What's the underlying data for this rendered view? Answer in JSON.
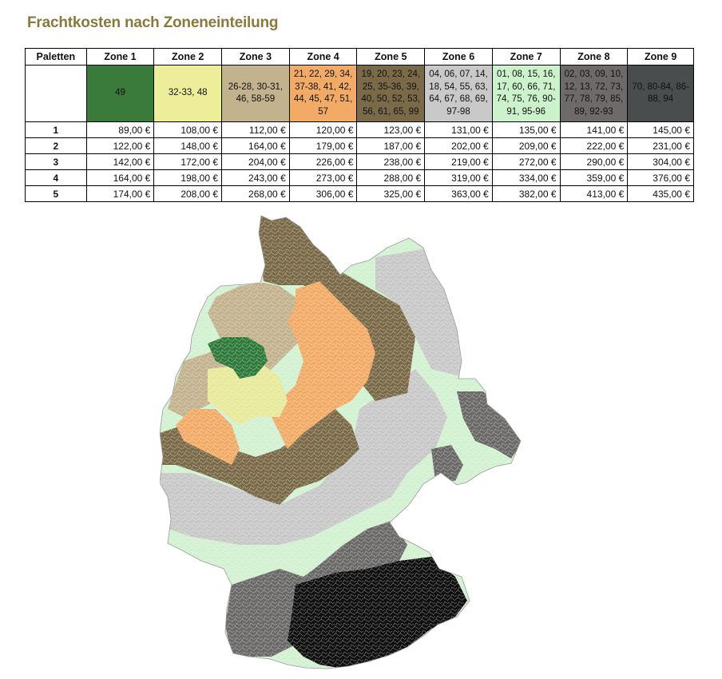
{
  "title": "Frachtkosten nach Zoneneinteilung",
  "table": {
    "header": [
      "Paletten",
      "Zone 1",
      "Zone 2",
      "Zone 3",
      "Zone 4",
      "Zone 5",
      "Zone 6",
      "Zone 7",
      "Zone 8",
      "Zone 9"
    ],
    "zones": [
      {
        "codes": "49",
        "color": "#3a7a3a",
        "text_color": "#111111"
      },
      {
        "codes": "32-33, 48",
        "color": "#eeed9a",
        "text_color": "#111111"
      },
      {
        "codes": "26-28, 30-31, 46, 58-59",
        "color": "#c2b28e",
        "text_color": "#111111"
      },
      {
        "codes": "21, 22, 29, 34, 37-38, 41, 42, 44, 45, 47, 51, 57",
        "color": "#f2ab66",
        "text_color": "#111111"
      },
      {
        "codes": "19, 20, 23, 24, 25, 35-36, 39, 40, 50, 52, 53, 56, 61, 65, 99",
        "color": "#7a6a48",
        "text_color": "#111111"
      },
      {
        "codes": "04, 06, 07, 14, 18, 54, 55, 63, 64, 67, 68, 69, 97-98",
        "color": "#c9c9c9",
        "text_color": "#111111"
      },
      {
        "codes": "01, 08, 15, 16, 17, 60, 66, 71, 74, 75, 76, 90-91, 95-96",
        "color": "#ccf2cc",
        "text_color": "#111111"
      },
      {
        "codes": "02, 03, 09, 10, 12, 13, 72, 73, 77, 78, 79, 85, 89, 92-93",
        "color": "#6e6a6a",
        "text_color": "#111111"
      },
      {
        "codes": "70, 80-84, 86-88, 94",
        "color": "#4a4d4d",
        "text_color": "#111111"
      }
    ],
    "rows": [
      {
        "pallets": "1",
        "prices": [
          "89,00 €",
          "108,00 €",
          "112,00 €",
          "120,00 €",
          "123,00 €",
          "131,00 €",
          "135,00 €",
          "141,00 €",
          "145,00 €"
        ]
      },
      {
        "pallets": "2",
        "prices": [
          "122,00 €",
          "148,00 €",
          "164,00 €",
          "179,00 €",
          "187,00 €",
          "202,00 €",
          "209,00 €",
          "222,00 €",
          "231,00 €"
        ]
      },
      {
        "pallets": "3",
        "prices": [
          "142,00 €",
          "172,00 €",
          "204,00 €",
          "226,00 €",
          "238,00 €",
          "219,00 €",
          "272,00 €",
          "290,00 €",
          "304,00 €"
        ]
      },
      {
        "pallets": "4",
        "prices": [
          "164,00 €",
          "198,00 €",
          "243,00 €",
          "273,00 €",
          "288,00 €",
          "319,00 €",
          "334,00 €",
          "359,00 €",
          "376,00 €"
        ]
      },
      {
        "pallets": "5",
        "prices": [
          "174,00 €",
          "208,00 €",
          "268,00 €",
          "306,00 €",
          "325,00 €",
          "363,00 €",
          "382,00 €",
          "413,00 €",
          "435,00 €"
        ]
      }
    ]
  },
  "map": {
    "colors": {
      "zone1": "#2f7a3a",
      "zone2": "#e8e99a",
      "zone3": "#c2b28e",
      "zone4": "#f2ab66",
      "zone5": "#7a6a48",
      "zone6": "#c8c8c8",
      "zone7": "#d2f1d0",
      "zone8": "#6b6868",
      "zone9": "#3f4242",
      "zone9b": "#101010"
    }
  }
}
